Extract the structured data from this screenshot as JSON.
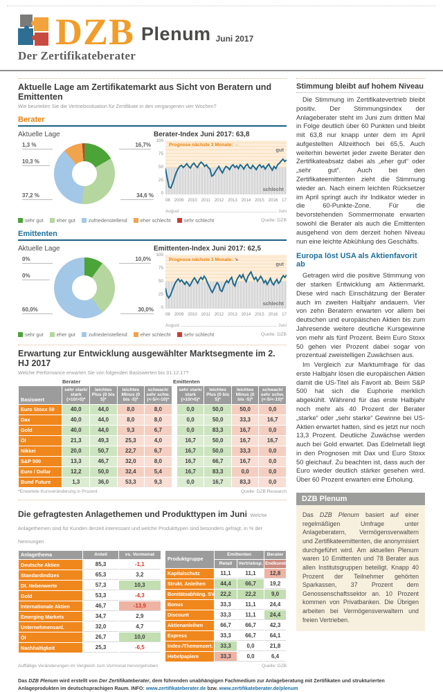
{
  "header": {
    "brand": "DZB",
    "product": "Plenum",
    "issue": "Juni 2017",
    "tagline": "Der Zertifikateberater"
  },
  "colors": {
    "accent_orange": "#e8820c",
    "accent_blue": "#1f6f99",
    "sentiment": [
      "#4aa437",
      "#b5d69f",
      "#a3c7e6",
      "#f0a44e",
      "#ce3b32"
    ],
    "chart_line": "#1d6a8e",
    "zone_good_bg": "#fdeeda",
    "zone_bad_bg": "#e4e4e4",
    "cell_green": "#cde4c0",
    "cell_pink": "#f4cfc1",
    "highlight_green": "#c3dfb2",
    "highlight_pink": "#efb3a4",
    "row_label_bg": "#f0871d",
    "header_gray": "#9c9c9c",
    "negative_red": "#d0382b",
    "link_blue": "#1a6fa8"
  },
  "survey_section": {
    "title": "Aktuelle Lage am Zertifikatemarkt aus Sicht von Beratern und Emittenten",
    "subtitle": "Wie beurteilen Sie die Vertriebssituation für Zertifikate in den vergangenen vier Wochen?",
    "berater_label": "Berater",
    "emittenten_label": "Emittenten",
    "legend": [
      {
        "label": "sehr gut",
        "color": "#4aa437"
      },
      {
        "label": "eher gut",
        "color": "#b5d69f"
      },
      {
        "label": "zufriedenstellend",
        "color": "#a3c7e6"
      },
      {
        "label": "eher schlecht",
        "color": "#f0a44e"
      },
      {
        "label": "sehr schlecht",
        "color": "#ce3b32"
      }
    ],
    "source": "Quelle: DZB"
  },
  "chart_data": [
    {
      "type": "pie",
      "id": "berater-pie",
      "title": "Aktuelle Lage",
      "labels": [
        "sehr gut",
        "eher gut",
        "zufriedenstellend",
        "eher schlecht",
        "sehr schlecht"
      ],
      "values": [
        16.7,
        34.6,
        37.2,
        10.3,
        1.3
      ],
      "callouts": [
        {
          "text": "16,7%",
          "pos": "tr"
        },
        {
          "text": "34,6 %",
          "pos": "br"
        },
        {
          "text": "37,2 %",
          "pos": "bl"
        },
        {
          "text": "10,3 %",
          "pos": "ml"
        },
        {
          "text": "1,3 %",
          "pos": "tl"
        }
      ]
    },
    {
      "type": "line",
      "id": "berater-index",
      "title": "Berater-Index Juni 2017: 63,8",
      "prognose_label": "Prognose nächste 3 Monate:",
      "prognose_arrow": "→",
      "zone_top": "gut",
      "zone_bottom": "schlecht",
      "ylim": [
        0,
        100
      ],
      "yticks": [
        0,
        25,
        50,
        75,
        100
      ],
      "xticks": [
        "08",
        "2009",
        "2010",
        "2011",
        "2012",
        "2013",
        "2014",
        "2015",
        "2016",
        "17"
      ],
      "x_start_label": "August",
      "x_end_label": "Juni",
      "values": [
        48,
        30,
        14,
        12,
        20,
        30,
        40,
        47,
        52,
        54,
        50,
        53,
        57,
        52,
        49,
        55,
        58,
        53,
        50,
        56,
        60,
        57,
        52,
        55,
        50,
        47,
        34,
        36,
        42,
        47,
        52,
        45,
        40,
        47,
        52,
        50,
        46,
        52,
        55,
        50,
        53,
        48,
        55,
        52,
        47,
        53,
        56,
        50,
        48,
        54,
        50,
        46,
        52,
        55,
        50,
        53,
        47,
        52,
        56,
        50,
        45,
        52,
        48,
        55,
        58,
        62,
        65.5,
        61,
        63.8
      ]
    },
    {
      "type": "pie",
      "id": "emittenten-pie",
      "title": "Aktuelle Lage",
      "labels": [
        "sehr gut",
        "eher gut",
        "zufriedenstellend",
        "eher schlecht",
        "sehr schlecht"
      ],
      "values": [
        10.0,
        30.0,
        60.0,
        0,
        0
      ],
      "callouts": [
        {
          "text": "10,0%",
          "pos": "tr"
        },
        {
          "text": "30,0%",
          "pos": "br"
        },
        {
          "text": "60,0%",
          "pos": "bl"
        },
        {
          "text": "0%",
          "pos": "ml"
        },
        {
          "text": "0%",
          "pos": "tl"
        }
      ]
    },
    {
      "type": "line",
      "id": "emittenten-index",
      "title": "Emittenten-Index Juni 2017: 62,5",
      "prognose_label": "Prognose nächste 3 Monate:",
      "prognose_arrow": "↘",
      "zone_top": "gut",
      "zone_bottom": "schlecht",
      "ylim": [
        0,
        100
      ],
      "yticks": [
        0,
        25,
        50,
        75,
        100
      ],
      "xticks": [
        "08",
        "2009",
        "2010",
        "2011",
        "2012",
        "2013",
        "2014",
        "2015",
        "2016",
        "17"
      ],
      "x_start_label": "August",
      "x_end_label": "Juni",
      "values": [
        38,
        25,
        20,
        24,
        32,
        40,
        47,
        52,
        55,
        50,
        53,
        49,
        45,
        50,
        46,
        42,
        47,
        53,
        57,
        52,
        47,
        54,
        58,
        54,
        60,
        56,
        48,
        42,
        35,
        30,
        36,
        43,
        48,
        44,
        34,
        32,
        40,
        47,
        52,
        48,
        54,
        58,
        46,
        42,
        52,
        58,
        62,
        57,
        63,
        55,
        50,
        59,
        64,
        68,
        60,
        54,
        58,
        51,
        55,
        60,
        55,
        48,
        52,
        45,
        50,
        56,
        48,
        44,
        50,
        54,
        47,
        50,
        57,
        61,
        58,
        62.5
      ]
    }
  ],
  "table1": {
    "title": "Erwartung zur Entwicklung ausgewählter Marktsegmente im 2. HJ 2017",
    "subtitle": "Welche Performance erwarten Sie von folgenden Basiswerten bis 31.12.17?",
    "group_left": "Berater",
    "group_right": "Emittenten",
    "row_header": "Basiswert",
    "col_headers": [
      "sehr stark/ stark (>10/>5)*",
      "leichtes Plus (0 bis 5)*",
      "leichtes Minus (0 bis -5)*",
      "schwach/ sehr schw. (<-5/<-10)*"
    ],
    "rows": [
      {
        "label": "Euro Stoxx 50",
        "berater": [
          "40,0",
          "44,0",
          "8,0",
          "8,0"
        ],
        "emittenten": [
          "0,0",
          "50,0",
          "50,0",
          "0,0"
        ]
      },
      {
        "label": "Dax",
        "berater": [
          "40,0",
          "44,0",
          "8,0",
          "8,0"
        ],
        "emittenten": [
          "0,0",
          "50,0",
          "33,3",
          "16,7"
        ]
      },
      {
        "label": "Gold",
        "berater": [
          "40,0",
          "44,0",
          "9,3",
          "6,7"
        ],
        "emittenten": [
          "0,0",
          "83,3",
          "16,7",
          "0,0"
        ]
      },
      {
        "label": "Öl",
        "berater": [
          "21,3",
          "49,3",
          "25,3",
          "4,0"
        ],
        "emittenten": [
          "16,7",
          "50,0",
          "16,7",
          "16,7"
        ]
      },
      {
        "label": "Nikkei",
        "berater": [
          "20,0",
          "50,7",
          "22,7",
          "6,7"
        ],
        "emittenten": [
          "16,7",
          "50,0",
          "33,3",
          "0,0"
        ]
      },
      {
        "label": "S&P 500",
        "berater": [
          "13,3",
          "46,7",
          "32,0",
          "8,0"
        ],
        "emittenten": [
          "16,7",
          "66,7",
          "16,7",
          "0,0"
        ]
      },
      {
        "label": "Euro / Dollar",
        "berater": [
          "12,2",
          "50,0",
          "32,4",
          "5,4"
        ],
        "emittenten": [
          "16,7",
          "83,3",
          "0,0",
          "0,0"
        ]
      },
      {
        "label": "Bund Future",
        "berater": [
          "1,3",
          "36,0",
          "53,3",
          "9,3"
        ],
        "emittenten": [
          "0,0",
          "16,7",
          "83,3",
          "0,0"
        ]
      }
    ],
    "footnote": "*Erwartete Kursveränderung in Prozent",
    "source": "Quelle: DZB Research"
  },
  "table2": {
    "title": "Die gefragtesten Anlagethemen und Produkttypen im Juni",
    "subtitle": "Welche Anlagethemen sind für Kunden derzeit interessant und welche Produkttypen sind besonders gefragt, in % der Nennungen",
    "left": {
      "headers": [
        "Anlagethema",
        "Anteil",
        "vs. Vormonat"
      ],
      "rows": [
        {
          "label": "Deutsche Aktien",
          "anteil": "85,3",
          "delta": "-1,1",
          "hl": ""
        },
        {
          "label": "Standardindizes",
          "anteil": "65,3",
          "delta": "3,2",
          "hl": ""
        },
        {
          "label": "Dt. Nebenwerte",
          "anteil": "57,3",
          "delta": "10,3",
          "hl": "g"
        },
        {
          "label": "Gold",
          "anteil": "53,3",
          "delta": "-4,3",
          "hl": ""
        },
        {
          "label": "Internationale Aktien",
          "anteil": "46,7",
          "delta": "-13,9",
          "hl": "r"
        },
        {
          "label": "Emerging Markets",
          "anteil": "34,7",
          "delta": "2,9",
          "hl": ""
        },
        {
          "label": "Unternehmensanl.",
          "anteil": "32,0",
          "delta": "4,7",
          "hl": ""
        },
        {
          "label": "Öl",
          "anteil": "26,7",
          "delta": "10,0",
          "hl": "g"
        },
        {
          "label": "Nachhaltigkeit",
          "anteil": "25,3",
          "delta": "-6,5",
          "hl": ""
        }
      ]
    },
    "right": {
      "group1": "Emittenten",
      "group2": "Berater",
      "col0": "Produktgruppe",
      "sub_headers": [
        "Retail",
        "Vertriebsp.",
        "Endkunden"
      ],
      "rows": [
        {
          "label": "Kapitalschutz",
          "vals": [
            "11,1",
            "11,1",
            "12,8"
          ],
          "hl": [
            "",
            "",
            "r"
          ]
        },
        {
          "label": "Strukt. Anleihen",
          "vals": [
            "44,4",
            "66,7",
            "19,2"
          ],
          "hl": [
            "g",
            "g",
            ""
          ]
        },
        {
          "label": "Bonitätsabhäng. SV",
          "vals": [
            "22,2",
            "22,2",
            "9,0"
          ],
          "hl": [
            "g",
            "g",
            "g"
          ]
        },
        {
          "label": "Bonus",
          "vals": [
            "33,3",
            "11,1",
            "24,4"
          ],
          "hl": [
            "",
            "",
            ""
          ]
        },
        {
          "label": "Discount",
          "vals": [
            "33,3",
            "11,1",
            "24,4"
          ],
          "hl": [
            "",
            "",
            "g"
          ]
        },
        {
          "label": "Aktienanleihen",
          "vals": [
            "66,7",
            "66,7",
            "42,3"
          ],
          "hl": [
            "",
            "",
            ""
          ]
        },
        {
          "label": "Express",
          "vals": [
            "33,3",
            "66,7",
            "64,1"
          ],
          "hl": [
            "",
            "",
            ""
          ]
        },
        {
          "label": "Index-/Themenzert.",
          "vals": [
            "33,3",
            "0,0",
            "21,8"
          ],
          "hl": [
            "g",
            "",
            ""
          ]
        },
        {
          "label": "Hebelpapiere",
          "vals": [
            "33,3",
            "0,0",
            "6,4"
          ],
          "hl": [
            "r",
            "",
            ""
          ]
        }
      ]
    },
    "footnote": "Auffällige Veränderungen im Vergleich zum Vormonat hervorgehoben",
    "source": "Quelle: DZB"
  },
  "article": {
    "h1": "Stimmung bleibt auf hohem Niveau",
    "p1": "Die Stimmung im Zertifikatevertrieb bleibt positiv. Der Stimmungsindex der Anlageberater steht im Juni zum dritten Mal in Folge deutlich über 60 Punkten und bleibt mit 63,8 nur knapp unter dem im April aufgestellten Allzeithoch bei 65,5. Auch weiterhin bewertet jeder zweite Berater den Zertifikateabsatz dabei als „eher gut“ oder „sehr gut“. Auch bei den Zertifikateemittenten zieht die Stimmung wieder an. Nach einem leichten Rücksetzer im April springt auch ihr Indikator wieder in die 60-Punkte-Zone. Für die bevorstehenden Sommermonate erwarten sowohl die Berater als auch die Emittenten ausgehend von dem derzeit hohen Niveau nun eine leichte Abkühlung des Geschäfts.",
    "h2": "Europa löst USA als Aktienfavorit ab",
    "p2": "Getragen wird die positive Stimmung von der starken Entwicklung am Aktienmarkt. Diese wird nach Einschätzung der Berater auch im zweiten Halbjahr andauern. Vier von zehn Beratern erwarten vor allem bei deutschen und europäischen Aktien bis zum Jahresende weitere deutliche Kursgewinne von mehr als fünf Prozent. Beim Euro Stoxx 50 gehen vier Prozent dabei sogar von prozentual zweistelligen Zuwächsen aus.",
    "p3": "Im Vergleich zur Marktumfrage für das erste Halbjahr lösen die europäischen Aktien damit die US-Titel als Favorit ab. Beim S&P 500 hat sich die Euphorie merklich abgekühlt. Während für das erste Halbjahr noch mehr als 40 Prozent der Berater „starke“ oder „sehr starke“ Gewinne bei US-Aktien erwartet hatten, sind es jetzt nur noch 13,3 Prozent. Deutliche Zuwächse werden auch bei Gold erwartet. Das Edelmetall liegt in den Prognosen mit Dax und Euro Stoxx 50 gleichauf. Zu beachten ist, dass auch der Euro wieder deutlich stärker gesehen wird. Über 60 Prozent erwarten eine Erholung."
  },
  "plenum_box": {
    "title": "DZB Plenum",
    "text_pre": "Das ",
    "text_italic": "DZB Plenum",
    "text_post": " basiert auf einer regelmäßigen Umfrage unter Anlageberatern, Vermögensverwaltern und Zertifikateemittenten, die anonymisiert durchgeführt wird. Am aktuellen Plenum waren 10 Emittenten und 78 Berater aus allen Institutsgruppen beteiligt. Knapp 40 Prozent der Teilnehmer gehörten Sparkassen, 37 Prozent dem Genossenschaftssektor an. 10 Prozent kommen von Privatbanken. Die Übrigen arbeiten bei Vermögensverwaltern und freien Vertrieben."
  },
  "footer": {
    "parts": [
      {
        "t": "Das ",
        "style": ""
      },
      {
        "t": "DZB Plenum",
        "style": "i"
      },
      {
        "t": " wird erstellt von ",
        "style": ""
      },
      {
        "t": "Der Zertifikateberater",
        "style": "i"
      },
      {
        "t": ", dem führenden unabhängigen Fachmedium zur Anlageberatung mit Zertifikaten und strukturierten Anlageprodukten im deutschsprachigen Raum. INFO: ",
        "style": ""
      },
      {
        "t": "www.zertifikateberater.de",
        "style": "link"
      },
      {
        "t": " bzw. ",
        "style": ""
      },
      {
        "t": "www.zertifikateberater.de/plenum",
        "style": "link"
      }
    ]
  }
}
